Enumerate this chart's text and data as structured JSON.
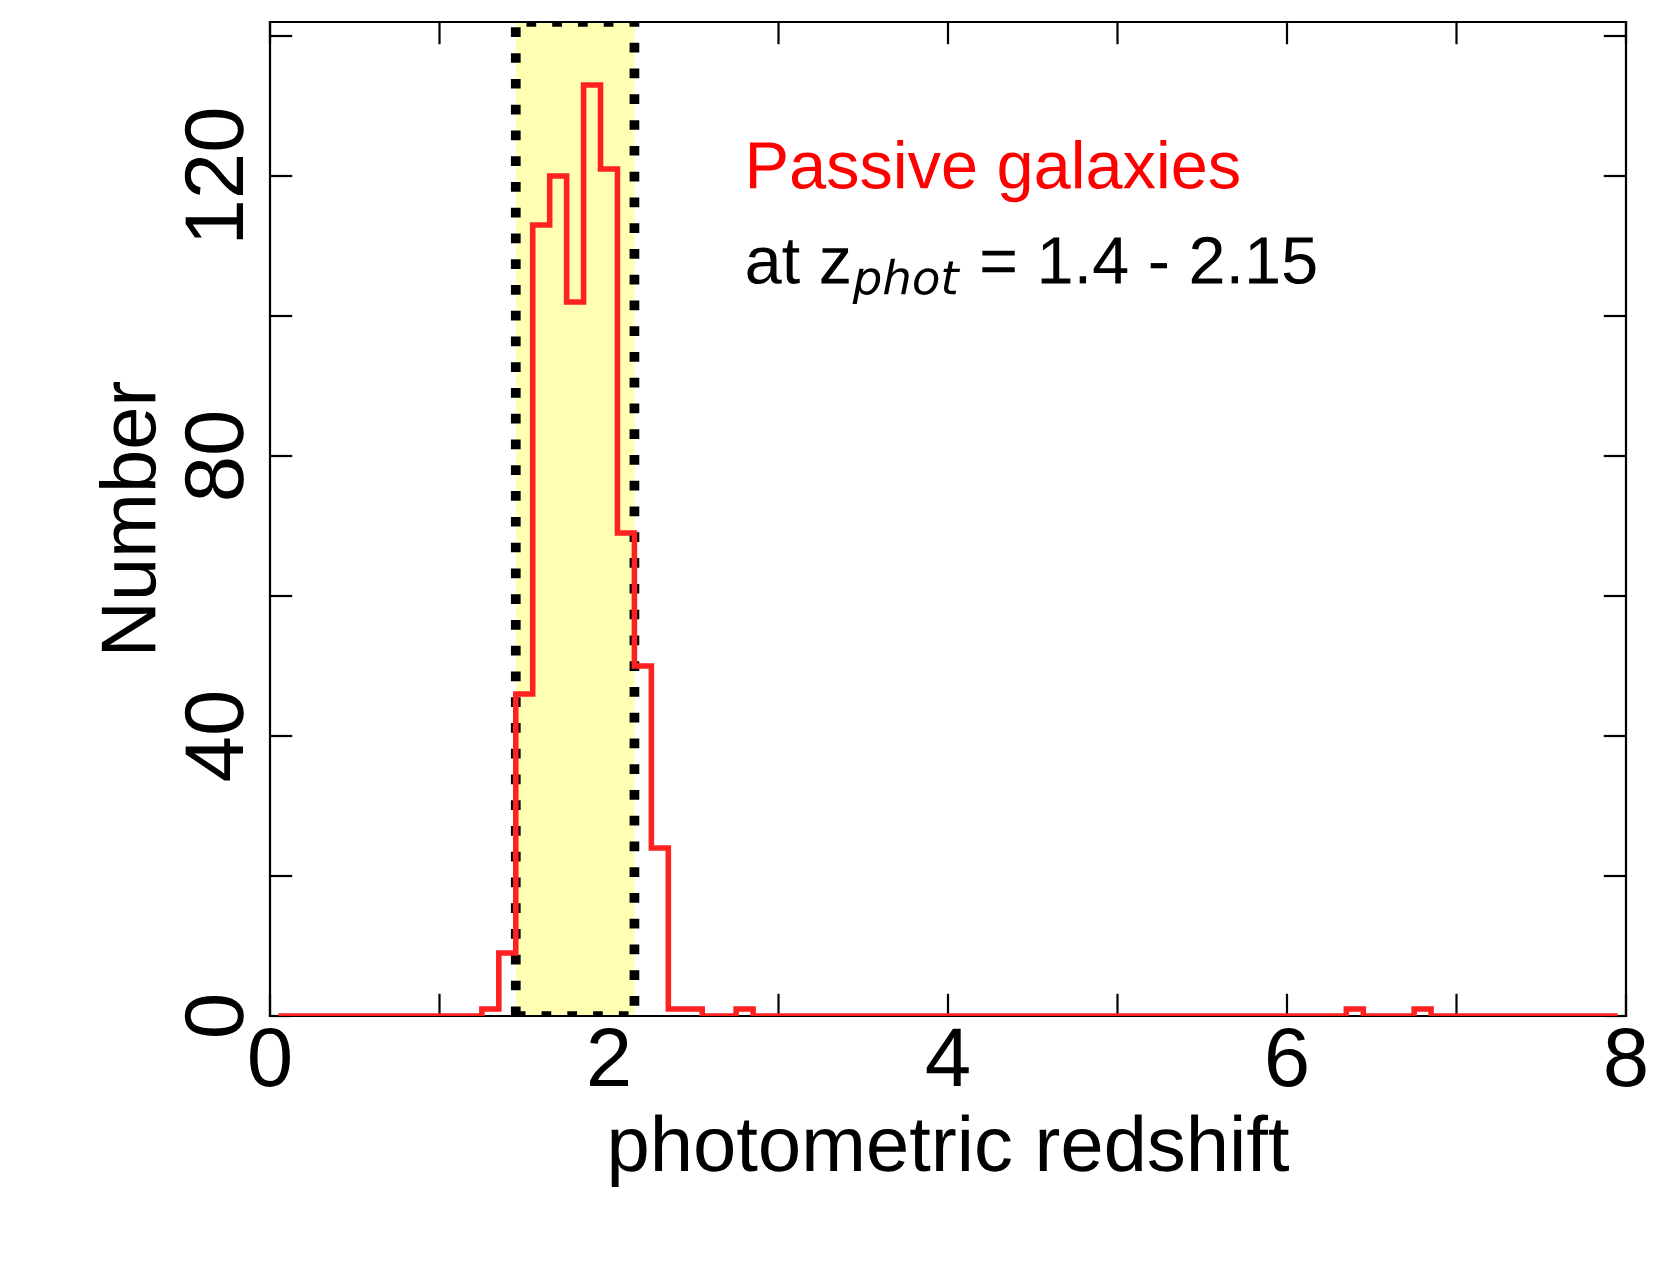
{
  "chart_data": {
    "type": "histogram",
    "xlabel": "photometric redshift",
    "ylabel": "Number",
    "bins": [
      0.05,
      0.15,
      0.25,
      0.35,
      0.45,
      0.55,
      0.65,
      0.75,
      0.85,
      0.95,
      1.05,
      1.15,
      1.25,
      1.35,
      1.45,
      1.55,
      1.65,
      1.75,
      1.85,
      1.95,
      2.05,
      2.15,
      2.25,
      2.35,
      2.45,
      2.55,
      2.65,
      2.75,
      2.85,
      2.95,
      3.05,
      3.15,
      3.25,
      3.35,
      3.45,
      3.55,
      3.65,
      3.75,
      3.85,
      3.95,
      4.05,
      4.15,
      4.25,
      4.35,
      4.45,
      4.55,
      4.65,
      4.75,
      4.85,
      4.95,
      5.05,
      5.15,
      5.25,
      5.35,
      5.45,
      5.55,
      5.65,
      5.75,
      5.85,
      5.95,
      6.05,
      6.15,
      6.25,
      6.35,
      6.45,
      6.55,
      6.65,
      6.75,
      6.85,
      6.95,
      7.05,
      7.15,
      7.25,
      7.35,
      7.45,
      7.55,
      7.65,
      7.75,
      7.85,
      7.95
    ],
    "values": [
      0,
      0,
      0,
      0,
      0,
      0,
      0,
      0,
      0,
      0,
      0,
      0,
      1,
      9,
      46,
      113,
      120,
      102,
      133,
      121,
      69,
      50,
      24,
      1,
      1,
      0,
      0,
      1,
      0,
      0,
      0,
      0,
      0,
      0,
      0,
      0,
      0,
      0,
      0,
      0,
      0,
      0,
      0,
      0,
      0,
      0,
      0,
      0,
      0,
      0,
      0,
      0,
      0,
      0,
      0,
      0,
      0,
      0,
      0,
      0,
      0,
      0,
      0,
      1,
      0,
      0,
      0,
      1,
      0,
      0,
      0,
      0,
      0,
      0,
      0,
      0,
      0,
      0,
      0
    ],
    "color": "#ff2020",
    "xlim": [
      0,
      8
    ],
    "ylim": [
      0,
      142
    ],
    "xticks": [
      0,
      {
        "value": 1,
        "label": null
      },
      2,
      {
        "value": 3,
        "label": null
      },
      4,
      {
        "value": 5,
        "label": null
      },
      6,
      {
        "value": 7,
        "label": null
      },
      8
    ],
    "yticks": [
      0,
      {
        "value": 20,
        "label": null
      },
      40,
      {
        "value": 60,
        "label": null
      },
      80,
      {
        "value": 100,
        "label": null
      },
      120,
      {
        "value": 140,
        "label": null
      }
    ],
    "bands": [
      {
        "axis": "x",
        "from": 1.45,
        "to": 2.15,
        "color": "#ffffb4"
      }
    ],
    "annotations": [
      "Passive galaxies",
      "at z$_{phot}$ = 1.4 - 2.15"
    ],
    "grid": false,
    "legend": false
  }
}
